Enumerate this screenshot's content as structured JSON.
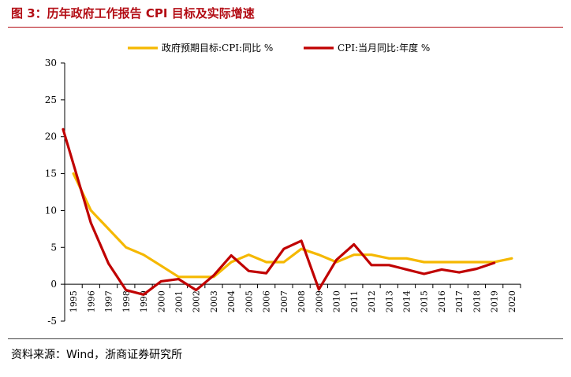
{
  "figure": {
    "title": "图 3：历年政府工作报告 CPI 目标及实际增速",
    "source": "资料来源：Wind，浙商证券研究所"
  },
  "chart_data": {
    "type": "line",
    "title": "图 3：历年政府工作报告 CPI 目标及实际增速",
    "xlabel": "",
    "ylabel": "",
    "ylim": [
      -5,
      30
    ],
    "yticks": [
      -5,
      0,
      5,
      10,
      15,
      20,
      25,
      30
    ],
    "grid": false,
    "legend_position": "top",
    "categories": [
      "1995",
      "1996",
      "1997",
      "1998",
      "1999",
      "2000",
      "2001",
      "2002",
      "2003",
      "2004",
      "2005",
      "2006",
      "2007",
      "2008",
      "2009",
      "2010",
      "2011",
      "2012",
      "2013",
      "2014",
      "2015",
      "2016",
      "2017",
      "2018",
      "2019",
      "2020"
    ],
    "series": [
      {
        "name": "政府预期目标:CPI:同比 %",
        "color": "#f5b800",
        "values": [
          15,
          10,
          7.5,
          5,
          4,
          2.5,
          1,
          1,
          1,
          3,
          4,
          3,
          3,
          4.8,
          4,
          3,
          4,
          4,
          3.5,
          3.5,
          3,
          3,
          3,
          3,
          3,
          3.5
        ]
      },
      {
        "name": "CPI:当月同比:年度 %",
        "color": "#c00000",
        "values": [
          21,
          8.3,
          2.8,
          -0.8,
          -1.4,
          0.4,
          0.7,
          -0.8,
          1.2,
          3.9,
          1.8,
          1.5,
          4.8,
          5.9,
          -0.7,
          3.3,
          5.4,
          2.6,
          2.6,
          2,
          1.4,
          2,
          1.6,
          2.1,
          2.9,
          null
        ],
        "start_value": 21,
        "start_label": "1995"
      }
    ]
  }
}
